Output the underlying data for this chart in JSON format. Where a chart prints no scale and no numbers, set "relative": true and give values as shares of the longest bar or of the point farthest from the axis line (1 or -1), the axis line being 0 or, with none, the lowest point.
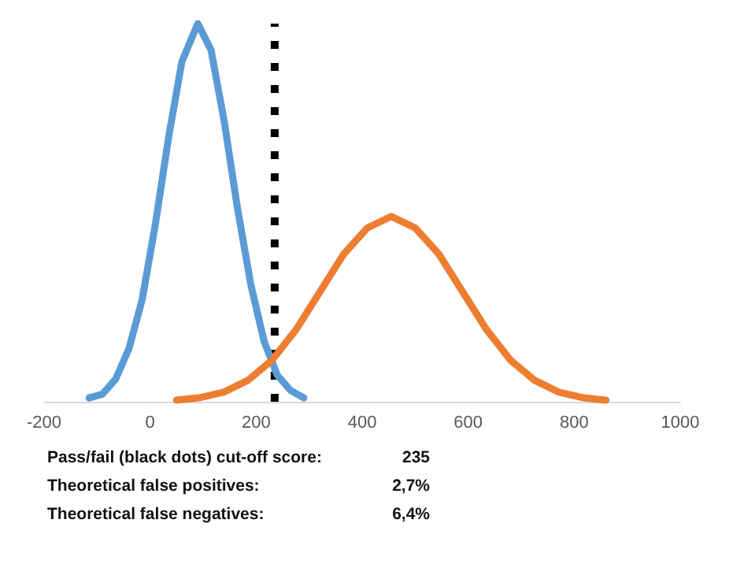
{
  "chart_data": {
    "type": "line",
    "relative": true,
    "xlim": [
      -200,
      1000
    ],
    "xticks": [
      -200,
      0,
      200,
      400,
      600,
      800,
      1000
    ],
    "series": [
      {
        "color": "#5b9bd5",
        "x": [
          -115,
          -90,
          -65,
          -40,
          -15,
          10,
          35,
          60,
          90,
          115,
          140,
          165,
          190,
          215,
          240,
          265,
          290
        ],
        "values": [
          0.01,
          0.02,
          0.06,
          0.14,
          0.27,
          0.47,
          0.7,
          0.9,
          1,
          0.93,
          0.74,
          0.51,
          0.31,
          0.16,
          0.07,
          0.03,
          0.01
        ]
      },
      {
        "color": "#ed7d31",
        "x": [
          50,
          95,
          140,
          185,
          230,
          275,
          320,
          365,
          410,
          455,
          500,
          545,
          590,
          635,
          680,
          725,
          770,
          815,
          860
        ],
        "values": [
          0.004,
          0.011,
          0.026,
          0.057,
          0.11,
          0.19,
          0.29,
          0.39,
          0.46,
          0.49,
          0.46,
          0.39,
          0.29,
          0.19,
          0.11,
          0.057,
          0.026,
          0.011,
          0.004
        ]
      }
    ],
    "ref_lines": [
      {
        "axis": "x",
        "value": 235,
        "color": "#000000",
        "line_style": "dotted"
      }
    ],
    "marker": "none",
    "line_style": "solid",
    "grid": false,
    "annotations": [
      "Pass/fail (black dots) cut-off score:",
      "235",
      "Theoretical false positives:",
      "2,7%",
      "Theoretical false negatives:",
      "6,4%"
    ]
  }
}
